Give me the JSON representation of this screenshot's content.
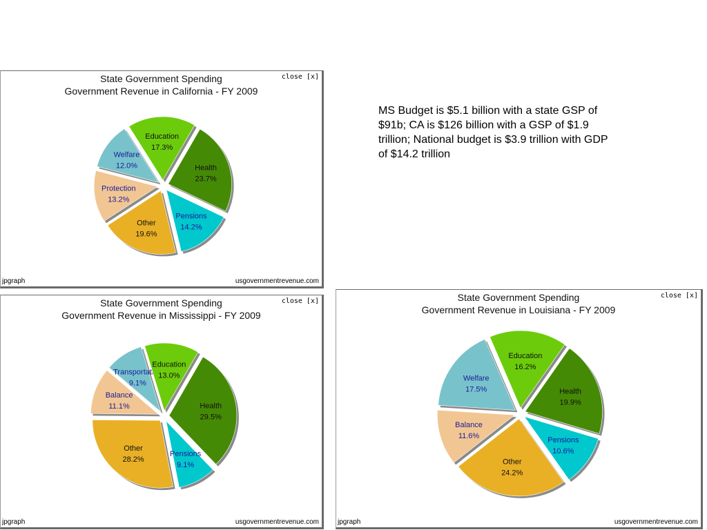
{
  "note": "MS Budget is $5.1 billion with a state GSP of $91b; CA is $126 billion with a GSP of $1.9 trillion; National budget is $3.9 trillion with GDP of $14.2 trillion",
  "colors": {
    "Health": "#458a05",
    "Pensions": "#00c8cd",
    "Other": "#e9b025",
    "Protection": "#f1c693",
    "Balance": "#f1c693",
    "Welfare": "#78c3cb",
    "Transportation": "#78c3cb",
    "Education": "#6ccc0b",
    "label_dark": "#111111",
    "label_blue": "#1a1a9a"
  },
  "panels": {
    "ca": {
      "title": "State Government Spending",
      "subtitle": "Government Revenue in California - FY 2009",
      "close_label": "close [x]",
      "footer_left": "jpgraph",
      "footer_right": "usgovernmentrevenue.com"
    },
    "ms": {
      "title": "State Government Spending",
      "subtitle": "Government Revenue in Mississippi - FY 2009",
      "close_label": "close [x]",
      "footer_left": "jpgraph",
      "footer_right": "usgovernmentrevenue.com"
    },
    "la": {
      "title": "State Government Spending",
      "subtitle": "Government Revenue in Louisiana - FY 2009",
      "close_label": "close [x]",
      "footer_left": "jpgraph",
      "footer_right": "usgovernmentrevenue.com"
    }
  },
  "chart_data": [
    {
      "type": "pie",
      "title": "State Government Spending",
      "subtitle": "Government Revenue in California - FY 2009",
      "slices": [
        {
          "label": "Health",
          "value": 23.7,
          "value_label": "23.7%"
        },
        {
          "label": "Pensions",
          "value": 14.2,
          "value_label": "14.2%"
        },
        {
          "label": "Other",
          "value": 19.6,
          "value_label": "19.6%"
        },
        {
          "label": "Protection",
          "value": 13.2,
          "value_label": "13.2%"
        },
        {
          "label": "Welfare",
          "value": 12.0,
          "value_label": "12.0%"
        },
        {
          "label": "Education",
          "value": 17.3,
          "value_label": "17.3%"
        }
      ]
    },
    {
      "type": "pie",
      "title": "State Government Spending",
      "subtitle": "Government Revenue in Mississippi - FY 2009",
      "slices": [
        {
          "label": "Health",
          "value": 29.5,
          "value_label": "29.5%"
        },
        {
          "label": "Pensions",
          "value": 9.1,
          "value_label": "9.1%"
        },
        {
          "label": "Other",
          "value": 28.2,
          "value_label": "28.2%"
        },
        {
          "label": "Balance",
          "value": 11.1,
          "value_label": "11.1%"
        },
        {
          "label": "Transportation",
          "value": 9.1,
          "value_label": "9.1%"
        },
        {
          "label": "Education",
          "value": 13.0,
          "value_label": "13.0%"
        }
      ]
    },
    {
      "type": "pie",
      "title": "State Government Spending",
      "subtitle": "Government Revenue in Louisiana - FY 2009",
      "slices": [
        {
          "label": "Health",
          "value": 19.9,
          "value_label": "19.9%"
        },
        {
          "label": "Pensions",
          "value": 10.6,
          "value_label": "10.6%"
        },
        {
          "label": "Other",
          "value": 24.2,
          "value_label": "24.2%"
        },
        {
          "label": "Balance",
          "value": 11.6,
          "value_label": "11.6%"
        },
        {
          "label": "Welfare",
          "value": 17.5,
          "value_label": "17.5%"
        },
        {
          "label": "Education",
          "value": 16.2,
          "value_label": "16.2%"
        }
      ]
    }
  ]
}
